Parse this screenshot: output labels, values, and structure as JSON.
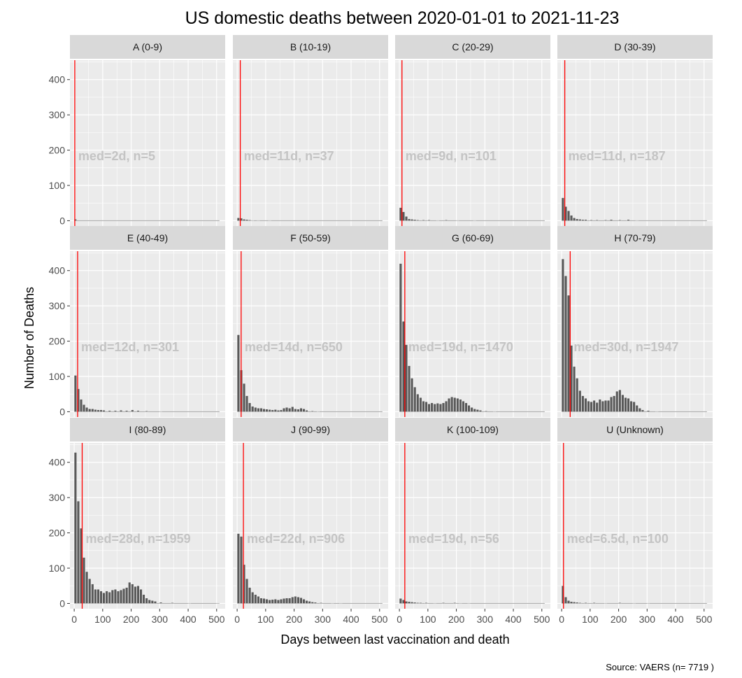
{
  "chart_data": {
    "type": "bar",
    "title": "US domestic deaths between 2020-01-01 to 2021-11-23",
    "xlabel": "Days between last vaccination and death",
    "ylabel": "Number of Deaths",
    "caption": "Source: VAERS (n= 7719 )",
    "xlim": [
      -15,
      530
    ],
    "ylim": [
      -15,
      455
    ],
    "x_ticks": [
      0,
      100,
      200,
      300,
      400,
      500
    ],
    "y_ticks": [
      0,
      100,
      200,
      300,
      400
    ],
    "bin_width": 10,
    "grid": true,
    "colors": {
      "bar": "#595959",
      "median_line": "#ff0000",
      "panel_bg": "#ebebeb",
      "strip_bg": "#d9d9d9",
      "annotation": "#c4c4c4"
    },
    "panels": [
      {
        "label": "A (0-9)",
        "annotation": "med=2d, n=5",
        "median": 2,
        "annotation_y": 185,
        "bins": [
          {
            "x": 0,
            "y": 4
          }
        ]
      },
      {
        "label": "B (10-19)",
        "annotation": "med=11d, n=37",
        "median": 11,
        "annotation_y": 185,
        "bins": [
          {
            "x": 0,
            "y": 8
          },
          {
            "x": 10,
            "y": 7
          },
          {
            "x": 20,
            "y": 4
          },
          {
            "x": 30,
            "y": 3
          },
          {
            "x": 40,
            "y": 2
          },
          {
            "x": 50,
            "y": 1
          },
          {
            "x": 70,
            "y": 1
          },
          {
            "x": 110,
            "y": 1
          }
        ]
      },
      {
        "label": "C (20-29)",
        "annotation": "med=9d, n=101",
        "median": 9,
        "annotation_y": 185,
        "bins": [
          {
            "x": 0,
            "y": 37
          },
          {
            "x": 10,
            "y": 25
          },
          {
            "x": 20,
            "y": 12
          },
          {
            "x": 30,
            "y": 5
          },
          {
            "x": 40,
            "y": 4
          },
          {
            "x": 50,
            "y": 3
          },
          {
            "x": 60,
            "y": 2
          },
          {
            "x": 80,
            "y": 2
          },
          {
            "x": 100,
            "y": 2
          },
          {
            "x": 130,
            "y": 1
          },
          {
            "x": 160,
            "y": 2
          },
          {
            "x": 200,
            "y": 1
          },
          {
            "x": 260,
            "y": 1
          }
        ]
      },
      {
        "label": "D (30-39)",
        "annotation": "med=11d, n=187",
        "median": 11,
        "annotation_y": 185,
        "bins": [
          {
            "x": 0,
            "y": 65
          },
          {
            "x": 10,
            "y": 40
          },
          {
            "x": 20,
            "y": 28
          },
          {
            "x": 30,
            "y": 15
          },
          {
            "x": 40,
            "y": 8
          },
          {
            "x": 50,
            "y": 5
          },
          {
            "x": 60,
            "y": 4
          },
          {
            "x": 70,
            "y": 3
          },
          {
            "x": 80,
            "y": 3
          },
          {
            "x": 100,
            "y": 2
          },
          {
            "x": 120,
            "y": 2
          },
          {
            "x": 150,
            "y": 2
          },
          {
            "x": 170,
            "y": 3
          },
          {
            "x": 200,
            "y": 2
          },
          {
            "x": 230,
            "y": 3
          },
          {
            "x": 260,
            "y": 1
          }
        ]
      },
      {
        "label": "E (40-49)",
        "annotation": "med=12d, n=301",
        "median": 12,
        "annotation_y": 185,
        "bins": [
          {
            "x": 0,
            "y": 103
          },
          {
            "x": 10,
            "y": 65
          },
          {
            "x": 20,
            "y": 35
          },
          {
            "x": 30,
            "y": 20
          },
          {
            "x": 40,
            "y": 12
          },
          {
            "x": 50,
            "y": 8
          },
          {
            "x": 60,
            "y": 8
          },
          {
            "x": 70,
            "y": 6
          },
          {
            "x": 80,
            "y": 5
          },
          {
            "x": 90,
            "y": 5
          },
          {
            "x": 100,
            "y": 4
          },
          {
            "x": 120,
            "y": 3
          },
          {
            "x": 140,
            "y": 3
          },
          {
            "x": 160,
            "y": 4
          },
          {
            "x": 180,
            "y": 3
          },
          {
            "x": 200,
            "y": 5
          },
          {
            "x": 220,
            "y": 3
          },
          {
            "x": 250,
            "y": 2
          },
          {
            "x": 300,
            "y": 1
          }
        ]
      },
      {
        "label": "F (50-59)",
        "annotation": "med=14d, n=650",
        "median": 14,
        "annotation_y": 185,
        "bins": [
          {
            "x": 0,
            "y": 218
          },
          {
            "x": 10,
            "y": 118
          },
          {
            "x": 20,
            "y": 80
          },
          {
            "x": 30,
            "y": 45
          },
          {
            "x": 40,
            "y": 25
          },
          {
            "x": 50,
            "y": 15
          },
          {
            "x": 60,
            "y": 12
          },
          {
            "x": 70,
            "y": 10
          },
          {
            "x": 80,
            "y": 10
          },
          {
            "x": 90,
            "y": 8
          },
          {
            "x": 100,
            "y": 7
          },
          {
            "x": 110,
            "y": 6
          },
          {
            "x": 120,
            "y": 5
          },
          {
            "x": 130,
            "y": 6
          },
          {
            "x": 140,
            "y": 4
          },
          {
            "x": 150,
            "y": 5
          },
          {
            "x": 160,
            "y": 10
          },
          {
            "x": 170,
            "y": 12
          },
          {
            "x": 180,
            "y": 10
          },
          {
            "x": 190,
            "y": 14
          },
          {
            "x": 200,
            "y": 8
          },
          {
            "x": 210,
            "y": 7
          },
          {
            "x": 220,
            "y": 10
          },
          {
            "x": 230,
            "y": 8
          },
          {
            "x": 240,
            "y": 4
          },
          {
            "x": 260,
            "y": 2
          },
          {
            "x": 280,
            "y": 1
          }
        ]
      },
      {
        "label": "G (60-69)",
        "annotation": "med=19d, n=1470",
        "median": 19,
        "annotation_y": 185,
        "bins": [
          {
            "x": 0,
            "y": 420
          },
          {
            "x": 10,
            "y": 256
          },
          {
            "x": 20,
            "y": 190
          },
          {
            "x": 30,
            "y": 130
          },
          {
            "x": 40,
            "y": 95
          },
          {
            "x": 50,
            "y": 70
          },
          {
            "x": 60,
            "y": 50
          },
          {
            "x": 70,
            "y": 40
          },
          {
            "x": 80,
            "y": 30
          },
          {
            "x": 90,
            "y": 28
          },
          {
            "x": 100,
            "y": 22
          },
          {
            "x": 110,
            "y": 25
          },
          {
            "x": 120,
            "y": 22
          },
          {
            "x": 130,
            "y": 24
          },
          {
            "x": 140,
            "y": 22
          },
          {
            "x": 150,
            "y": 25
          },
          {
            "x": 160,
            "y": 30
          },
          {
            "x": 170,
            "y": 38
          },
          {
            "x": 180,
            "y": 42
          },
          {
            "x": 190,
            "y": 40
          },
          {
            "x": 200,
            "y": 38
          },
          {
            "x": 210,
            "y": 35
          },
          {
            "x": 220,
            "y": 30
          },
          {
            "x": 230,
            "y": 25
          },
          {
            "x": 240,
            "y": 18
          },
          {
            "x": 250,
            "y": 12
          },
          {
            "x": 260,
            "y": 8
          },
          {
            "x": 270,
            "y": 6
          },
          {
            "x": 280,
            "y": 4
          },
          {
            "x": 300,
            "y": 2
          },
          {
            "x": 330,
            "y": 1
          }
        ]
      },
      {
        "label": "H (70-79)",
        "annotation": "med=30d, n=1947",
        "median": 30,
        "annotation_y": 185,
        "bins": [
          {
            "x": 0,
            "y": 433
          },
          {
            "x": 10,
            "y": 385
          },
          {
            "x": 20,
            "y": 330
          },
          {
            "x": 30,
            "y": 188
          },
          {
            "x": 40,
            "y": 128
          },
          {
            "x": 50,
            "y": 95
          },
          {
            "x": 60,
            "y": 60
          },
          {
            "x": 70,
            "y": 45
          },
          {
            "x": 80,
            "y": 38
          },
          {
            "x": 90,
            "y": 30
          },
          {
            "x": 100,
            "y": 28
          },
          {
            "x": 110,
            "y": 32
          },
          {
            "x": 120,
            "y": 26
          },
          {
            "x": 130,
            "y": 35
          },
          {
            "x": 140,
            "y": 30
          },
          {
            "x": 150,
            "y": 32
          },
          {
            "x": 160,
            "y": 32
          },
          {
            "x": 170,
            "y": 42
          },
          {
            "x": 180,
            "y": 45
          },
          {
            "x": 190,
            "y": 58
          },
          {
            "x": 200,
            "y": 62
          },
          {
            "x": 210,
            "y": 48
          },
          {
            "x": 220,
            "y": 40
          },
          {
            "x": 230,
            "y": 38
          },
          {
            "x": 240,
            "y": 30
          },
          {
            "x": 250,
            "y": 28
          },
          {
            "x": 260,
            "y": 18
          },
          {
            "x": 270,
            "y": 10
          },
          {
            "x": 280,
            "y": 5
          },
          {
            "x": 300,
            "y": 3
          },
          {
            "x": 330,
            "y": 1
          }
        ]
      },
      {
        "label": "I (80-89)",
        "annotation": "med=28d, n=1959",
        "median": 28,
        "annotation_y": 185,
        "bins": [
          {
            "x": 0,
            "y": 428
          },
          {
            "x": 10,
            "y": 290
          },
          {
            "x": 20,
            "y": 213
          },
          {
            "x": 30,
            "y": 130
          },
          {
            "x": 40,
            "y": 90
          },
          {
            "x": 50,
            "y": 70
          },
          {
            "x": 60,
            "y": 55
          },
          {
            "x": 70,
            "y": 40
          },
          {
            "x": 80,
            "y": 40
          },
          {
            "x": 90,
            "y": 35
          },
          {
            "x": 100,
            "y": 30
          },
          {
            "x": 110,
            "y": 35
          },
          {
            "x": 120,
            "y": 32
          },
          {
            "x": 130,
            "y": 38
          },
          {
            "x": 140,
            "y": 40
          },
          {
            "x": 150,
            "y": 35
          },
          {
            "x": 160,
            "y": 38
          },
          {
            "x": 170,
            "y": 42
          },
          {
            "x": 180,
            "y": 45
          },
          {
            "x": 190,
            "y": 60
          },
          {
            "x": 200,
            "y": 55
          },
          {
            "x": 210,
            "y": 48
          },
          {
            "x": 220,
            "y": 50
          },
          {
            "x": 230,
            "y": 40
          },
          {
            "x": 240,
            "y": 25
          },
          {
            "x": 250,
            "y": 15
          },
          {
            "x": 260,
            "y": 10
          },
          {
            "x": 270,
            "y": 8
          },
          {
            "x": 280,
            "y": 6
          },
          {
            "x": 300,
            "y": 3
          },
          {
            "x": 340,
            "y": 2
          },
          {
            "x": 400,
            "y": 1
          },
          {
            "x": 500,
            "y": 1
          }
        ]
      },
      {
        "label": "J (90-99)",
        "annotation": "med=22d, n=906",
        "median": 22,
        "annotation_y": 185,
        "bins": [
          {
            "x": 0,
            "y": 198
          },
          {
            "x": 10,
            "y": 190
          },
          {
            "x": 20,
            "y": 110
          },
          {
            "x": 30,
            "y": 70
          },
          {
            "x": 40,
            "y": 45
          },
          {
            "x": 50,
            "y": 32
          },
          {
            "x": 60,
            "y": 25
          },
          {
            "x": 70,
            "y": 20
          },
          {
            "x": 80,
            "y": 15
          },
          {
            "x": 90,
            "y": 14
          },
          {
            "x": 100,
            "y": 12
          },
          {
            "x": 110,
            "y": 10
          },
          {
            "x": 120,
            "y": 11
          },
          {
            "x": 130,
            "y": 12
          },
          {
            "x": 140,
            "y": 10
          },
          {
            "x": 150,
            "y": 12
          },
          {
            "x": 160,
            "y": 14
          },
          {
            "x": 170,
            "y": 15
          },
          {
            "x": 180,
            "y": 15
          },
          {
            "x": 190,
            "y": 18
          },
          {
            "x": 200,
            "y": 20
          },
          {
            "x": 210,
            "y": 18
          },
          {
            "x": 220,
            "y": 16
          },
          {
            "x": 230,
            "y": 12
          },
          {
            "x": 240,
            "y": 8
          },
          {
            "x": 250,
            "y": 6
          },
          {
            "x": 260,
            "y": 4
          },
          {
            "x": 270,
            "y": 3
          },
          {
            "x": 290,
            "y": 2
          },
          {
            "x": 330,
            "y": 1
          },
          {
            "x": 360,
            "y": 1
          }
        ]
      },
      {
        "label": "K (100-109)",
        "annotation": "med=19d, n=56",
        "median": 19,
        "annotation_y": 185,
        "bins": [
          {
            "x": 0,
            "y": 14
          },
          {
            "x": 10,
            "y": 10
          },
          {
            "x": 20,
            "y": 6
          },
          {
            "x": 30,
            "y": 5
          },
          {
            "x": 40,
            "y": 4
          },
          {
            "x": 50,
            "y": 3
          },
          {
            "x": 60,
            "y": 2
          },
          {
            "x": 70,
            "y": 2
          },
          {
            "x": 90,
            "y": 2
          },
          {
            "x": 120,
            "y": 1
          },
          {
            "x": 150,
            "y": 2
          },
          {
            "x": 190,
            "y": 2
          },
          {
            "x": 210,
            "y": 1
          },
          {
            "x": 240,
            "y": 1
          }
        ]
      },
      {
        "label": "U (Unknown)",
        "annotation": "med=6.5d, n=100",
        "median": 6.5,
        "annotation_y": 185,
        "bins": [
          {
            "x": 0,
            "y": 50
          },
          {
            "x": 10,
            "y": 18
          },
          {
            "x": 20,
            "y": 8
          },
          {
            "x": 30,
            "y": 5
          },
          {
            "x": 40,
            "y": 4
          },
          {
            "x": 50,
            "y": 3
          },
          {
            "x": 60,
            "y": 2
          },
          {
            "x": 80,
            "y": 2
          },
          {
            "x": 110,
            "y": 2
          },
          {
            "x": 150,
            "y": 1
          },
          {
            "x": 200,
            "y": 2
          },
          {
            "x": 250,
            "y": 1
          },
          {
            "x": 300,
            "y": 1
          }
        ]
      }
    ]
  }
}
